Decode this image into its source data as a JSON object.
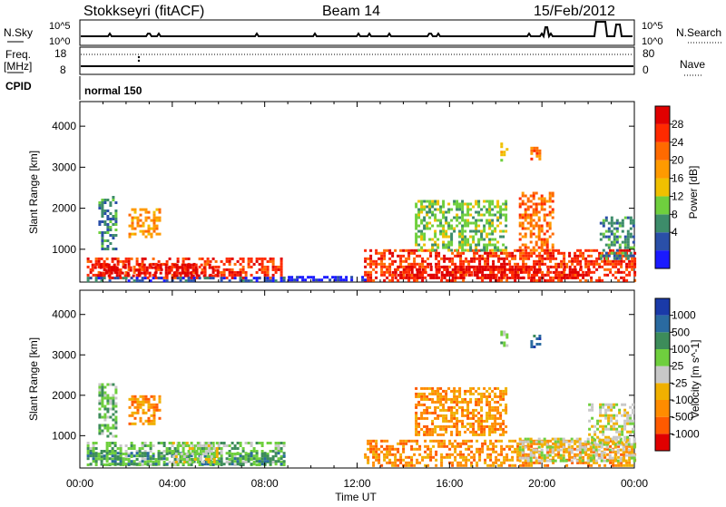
{
  "header": {
    "station": "Stokkseyri (fitACF)",
    "beam": "Beam 14",
    "date": "15/Feb/2012"
  },
  "status_panels": {
    "nsky_label": "N.Sky",
    "nsearch_label": "N.Search",
    "noise_ticks_left": [
      "10^5",
      "10^0"
    ],
    "noise_ticks_right": [
      "10^5",
      "10^0"
    ],
    "freq_label_line1": "Freq.",
    "freq_label_line2": "[MHz]",
    "freq_ticks": [
      "18",
      "8"
    ],
    "nave_label": "Nave",
    "nave_ticks": [
      "80",
      "0"
    ],
    "cpid_label": "CPID",
    "cpid_value": "normal 150"
  },
  "colors": {
    "power": [
      "#1a1aff",
      "#2a4fa8",
      "#3d8c6a",
      "#6fcf3e",
      "#f0c000",
      "#ff9a00",
      "#ff6a00",
      "#ff2a00",
      "#e00000"
    ],
    "velocity": [
      "#1a3aa8",
      "#2a6aa0",
      "#3d8c5a",
      "#6fcf3e",
      "#c8c8c8",
      "#f0b000",
      "#ff8c00",
      "#ff5a00",
      "#e00000"
    ]
  },
  "chart_data": [
    {
      "type": "heatmap",
      "name": "power",
      "xlabel": "",
      "ylabel": "Slant Range [km]",
      "x_ticks": [
        "00:00",
        "04:00",
        "08:00",
        "12:00",
        "16:00",
        "20:00",
        "00:00"
      ],
      "xlim_hours": [
        0,
        24
      ],
      "y_ticks": [
        1000,
        2000,
        3000,
        4000
      ],
      "ylim_km": [
        200,
        4600
      ],
      "colorbar_label": "Power [dB]",
      "colorbar_ticks": [
        "28",
        "24",
        "20",
        "16",
        "12",
        "8",
        "4"
      ],
      "blobs": [
        {
          "t0": 0.3,
          "t1": 8.9,
          "r0": 300,
          "r1": 800,
          "c": 7
        },
        {
          "t0": 0.5,
          "t1": 6.0,
          "r0": 350,
          "r1": 650,
          "c": 8
        },
        {
          "t0": 0.3,
          "t1": 8.9,
          "r0": 220,
          "r1": 330,
          "c": 1
        },
        {
          "t0": 0.8,
          "t1": 1.6,
          "r0": 1000,
          "r1": 2300,
          "c": 2
        },
        {
          "t0": 2.1,
          "t1": 3.4,
          "r0": 1300,
          "r1": 2000,
          "c": 5
        },
        {
          "t0": 12.3,
          "t1": 24.0,
          "r0": 250,
          "r1": 1000,
          "c": 7
        },
        {
          "t0": 13.5,
          "t1": 22.0,
          "r0": 300,
          "r1": 600,
          "c": 8
        },
        {
          "t0": 14.5,
          "t1": 18.5,
          "r0": 1000,
          "r1": 2200,
          "c": 3
        },
        {
          "t0": 19.0,
          "t1": 20.5,
          "r0": 1000,
          "r1": 2400,
          "c": 6
        },
        {
          "t0": 22.5,
          "t1": 24.0,
          "r0": 800,
          "r1": 1800,
          "c": 2
        },
        {
          "t0": 9.0,
          "t1": 12.3,
          "r0": 220,
          "r1": 350,
          "c": 0
        },
        {
          "t0": 18.2,
          "t1": 18.5,
          "r0": 3200,
          "r1": 3600,
          "c": 4
        },
        {
          "t0": 19.5,
          "t1": 19.9,
          "r0": 3200,
          "r1": 3500,
          "c": 6
        }
      ]
    },
    {
      "type": "heatmap",
      "name": "velocity",
      "xlabel": "Time UT",
      "ylabel": "Slant Range [km]",
      "x_ticks": [
        "00:00",
        "04:00",
        "08:00",
        "12:00",
        "16:00",
        "20:00",
        "00:00"
      ],
      "xlim_hours": [
        0,
        24
      ],
      "y_ticks": [
        1000,
        2000,
        3000,
        4000
      ],
      "ylim_km": [
        200,
        4600
      ],
      "colorbar_label": "Velocity [m s^-1]",
      "colorbar_ticks": [
        "1000",
        "500",
        "100",
        "25",
        "-25",
        "-100",
        "-500",
        "-1000"
      ],
      "blobs": [
        {
          "t0": 0.3,
          "t1": 8.9,
          "r0": 250,
          "r1": 850,
          "c": 3
        },
        {
          "t0": 0.3,
          "t1": 8.9,
          "r0": 300,
          "r1": 600,
          "c": 2
        },
        {
          "t0": 4.0,
          "t1": 6.0,
          "r0": 350,
          "r1": 850,
          "c": 4
        },
        {
          "t0": 0.8,
          "t1": 1.6,
          "r0": 1000,
          "r1": 2300,
          "c": 3
        },
        {
          "t0": 2.1,
          "t1": 3.4,
          "r0": 1300,
          "r1": 2000,
          "c": 6
        },
        {
          "t0": 12.3,
          "t1": 24.0,
          "r0": 250,
          "r1": 900,
          "c": 6
        },
        {
          "t0": 19.0,
          "t1": 24.0,
          "r0": 400,
          "r1": 950,
          "c": 4
        },
        {
          "t0": 14.5,
          "t1": 18.5,
          "r0": 1000,
          "r1": 2200,
          "c": 6
        },
        {
          "t0": 22.0,
          "t1": 24.0,
          "r0": 800,
          "r1": 1800,
          "c": 4
        },
        {
          "t0": 18.2,
          "t1": 18.5,
          "r0": 3200,
          "r1": 3600,
          "c": 3
        },
        {
          "t0": 19.5,
          "t1": 19.9,
          "r0": 3200,
          "r1": 3500,
          "c": 1
        }
      ]
    }
  ]
}
